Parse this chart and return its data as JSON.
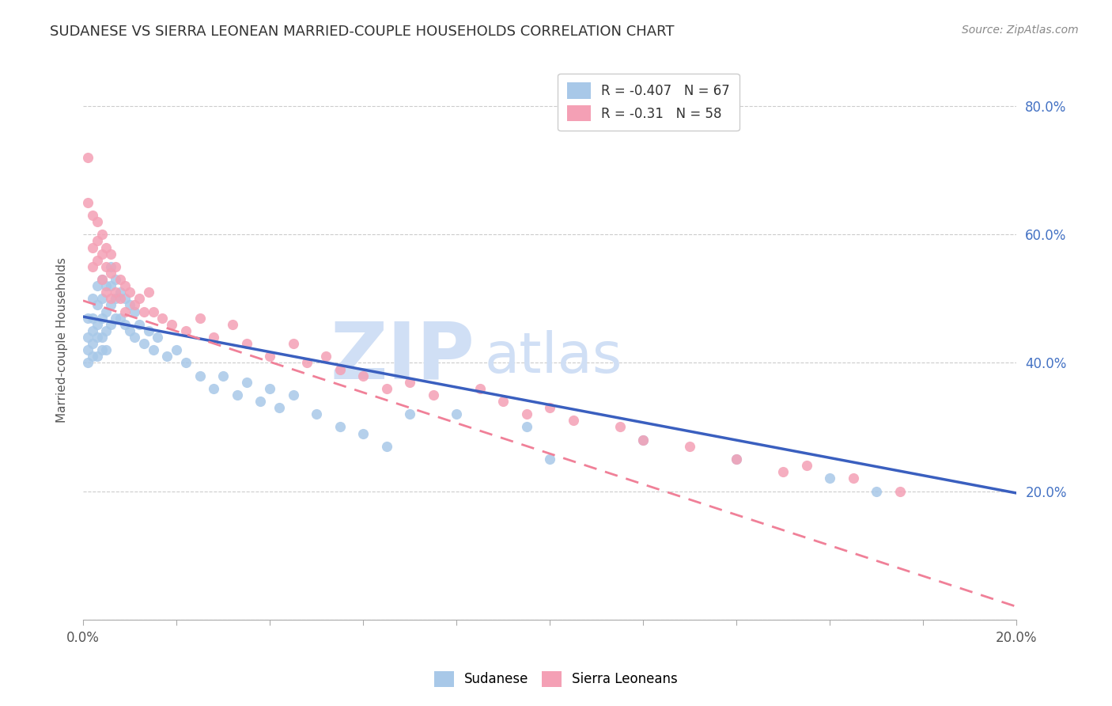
{
  "title": "SUDANESE VS SIERRA LEONEAN MARRIED-COUPLE HOUSEHOLDS CORRELATION CHART",
  "source": "Source: ZipAtlas.com",
  "ylabel": "Married-couple Households",
  "yticks": [
    0.0,
    0.2,
    0.4,
    0.6,
    0.8
  ],
  "ytick_labels": [
    "",
    "20.0%",
    "40.0%",
    "60.0%",
    "80.0%"
  ],
  "xticks": [
    0.0,
    0.02,
    0.04,
    0.06,
    0.08,
    0.1,
    0.12,
    0.14,
    0.16,
    0.18,
    0.2
  ],
  "xtick_labels": [
    "0.0%",
    "",
    "",
    "",
    "",
    "",
    "",
    "",
    "",
    "",
    "20.0%"
  ],
  "xlim": [
    0.0,
    0.2
  ],
  "ylim": [
    0.05,
    0.87
  ],
  "r_sudanese": -0.407,
  "n_sudanese": 67,
  "r_sierra": -0.31,
  "n_sierra": 58,
  "color_sudanese": "#A8C8E8",
  "color_sierra": "#F4A0B5",
  "color_line_sudanese": "#3A5FBF",
  "color_line_sierra": "#F08098",
  "watermark_zip": "ZIP",
  "watermark_atlas": "atlas",
  "watermark_color": "#D0DFF5",
  "title_fontsize": 13,
  "source_fontsize": 10,
  "legend_fontsize": 12,
  "sudanese_x": [
    0.001,
    0.001,
    0.001,
    0.001,
    0.002,
    0.002,
    0.002,
    0.002,
    0.002,
    0.003,
    0.003,
    0.003,
    0.003,
    0.003,
    0.004,
    0.004,
    0.004,
    0.004,
    0.004,
    0.005,
    0.005,
    0.005,
    0.005,
    0.006,
    0.006,
    0.006,
    0.006,
    0.007,
    0.007,
    0.007,
    0.008,
    0.008,
    0.009,
    0.009,
    0.01,
    0.01,
    0.011,
    0.011,
    0.012,
    0.013,
    0.014,
    0.015,
    0.016,
    0.018,
    0.02,
    0.022,
    0.025,
    0.028,
    0.03,
    0.033,
    0.035,
    0.038,
    0.04,
    0.042,
    0.045,
    0.05,
    0.055,
    0.06,
    0.065,
    0.07,
    0.08,
    0.095,
    0.1,
    0.12,
    0.14,
    0.16,
    0.17
  ],
  "sudanese_y": [
    0.47,
    0.44,
    0.42,
    0.4,
    0.5,
    0.47,
    0.45,
    0.43,
    0.41,
    0.52,
    0.49,
    0.46,
    0.44,
    0.41,
    0.53,
    0.5,
    0.47,
    0.44,
    0.42,
    0.52,
    0.48,
    0.45,
    0.42,
    0.55,
    0.52,
    0.49,
    0.46,
    0.53,
    0.5,
    0.47,
    0.51,
    0.47,
    0.5,
    0.46,
    0.49,
    0.45,
    0.48,
    0.44,
    0.46,
    0.43,
    0.45,
    0.42,
    0.44,
    0.41,
    0.42,
    0.4,
    0.38,
    0.36,
    0.38,
    0.35,
    0.37,
    0.34,
    0.36,
    0.33,
    0.35,
    0.32,
    0.3,
    0.29,
    0.27,
    0.32,
    0.32,
    0.3,
    0.25,
    0.28,
    0.25,
    0.22,
    0.2
  ],
  "sierra_x": [
    0.001,
    0.001,
    0.002,
    0.002,
    0.002,
    0.003,
    0.003,
    0.003,
    0.004,
    0.004,
    0.004,
    0.005,
    0.005,
    0.005,
    0.006,
    0.006,
    0.006,
    0.007,
    0.007,
    0.008,
    0.008,
    0.009,
    0.009,
    0.01,
    0.011,
    0.012,
    0.013,
    0.014,
    0.015,
    0.017,
    0.019,
    0.022,
    0.025,
    0.028,
    0.032,
    0.035,
    0.04,
    0.045,
    0.048,
    0.052,
    0.055,
    0.06,
    0.065,
    0.07,
    0.075,
    0.085,
    0.09,
    0.095,
    0.1,
    0.105,
    0.115,
    0.12,
    0.13,
    0.14,
    0.15,
    0.155,
    0.165,
    0.175
  ],
  "sierra_y": [
    0.72,
    0.65,
    0.63,
    0.58,
    0.55,
    0.62,
    0.59,
    0.56,
    0.6,
    0.57,
    0.53,
    0.58,
    0.55,
    0.51,
    0.57,
    0.54,
    0.5,
    0.55,
    0.51,
    0.53,
    0.5,
    0.52,
    0.48,
    0.51,
    0.49,
    0.5,
    0.48,
    0.51,
    0.48,
    0.47,
    0.46,
    0.45,
    0.47,
    0.44,
    0.46,
    0.43,
    0.41,
    0.43,
    0.4,
    0.41,
    0.39,
    0.38,
    0.36,
    0.37,
    0.35,
    0.36,
    0.34,
    0.32,
    0.33,
    0.31,
    0.3,
    0.28,
    0.27,
    0.25,
    0.23,
    0.24,
    0.22,
    0.2
  ],
  "trend_blue_x0": 0.0,
  "trend_blue_y0": 0.472,
  "trend_blue_x1": 0.2,
  "trend_blue_y1": 0.197,
  "trend_pink_x0": 0.0,
  "trend_pink_y0": 0.497,
  "trend_pink_x1": 0.2,
  "trend_pink_y1": 0.02
}
